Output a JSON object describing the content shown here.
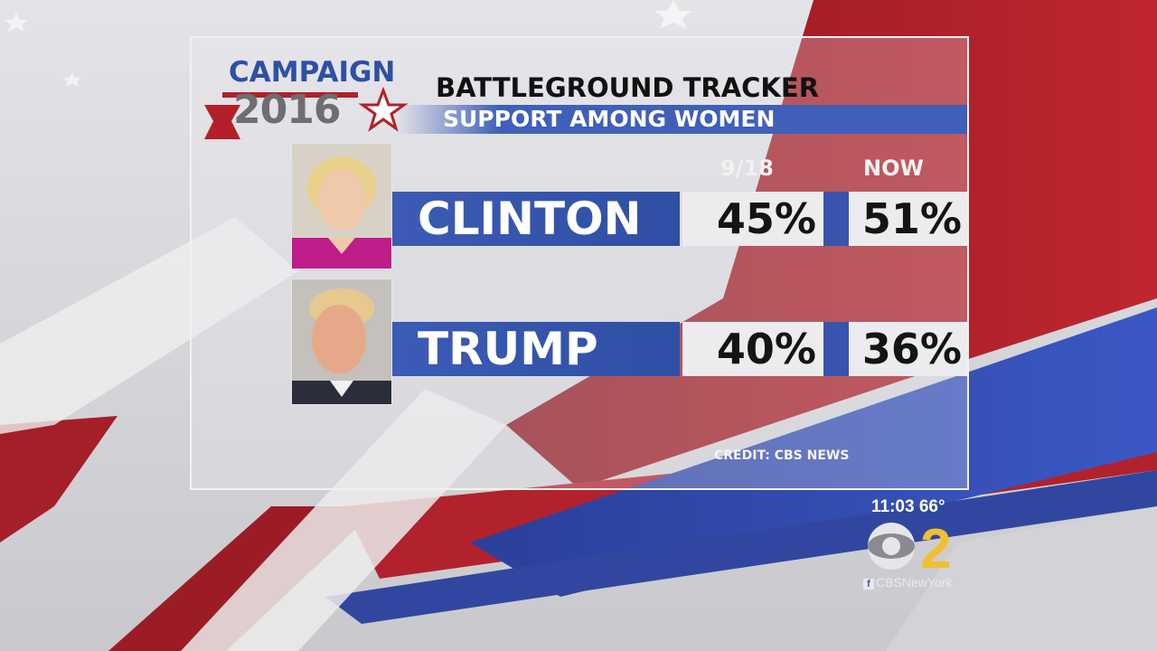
{
  "logo": {
    "line1": "CAMPAIGN",
    "line2": "2016"
  },
  "header": {
    "title": "BATTLEGROUND TRACKER",
    "subtitle": "SUPPORT AMONG WOMEN"
  },
  "columns": {
    "previous": "9/18",
    "current": "NOW"
  },
  "chart_data": {
    "type": "table",
    "title": "BATTLEGROUND TRACKER",
    "subtitle": "SUPPORT AMONG WOMEN",
    "columns": [
      "9/18",
      "NOW"
    ],
    "rows": [
      {
        "name": "CLINTON",
        "values": [
          "45%",
          "51%"
        ]
      },
      {
        "name": "TRUMP",
        "values": [
          "40%",
          "36%"
        ]
      }
    ],
    "credit": "CREDIT: CBS NEWS"
  },
  "rows": [
    {
      "name": "CLINTON",
      "prev": "45%",
      "now": "51%"
    },
    {
      "name": "TRUMP",
      "prev": "40%",
      "now": "36%"
    }
  ],
  "credit": "CREDIT: CBS NEWS",
  "bug": {
    "time_temp": "11:03  66°",
    "channel": "2",
    "social": "CBSNewYork"
  },
  "colors": {
    "blue": "#3b5bb5",
    "red": "#b3202a",
    "panel_text": "#111111"
  }
}
